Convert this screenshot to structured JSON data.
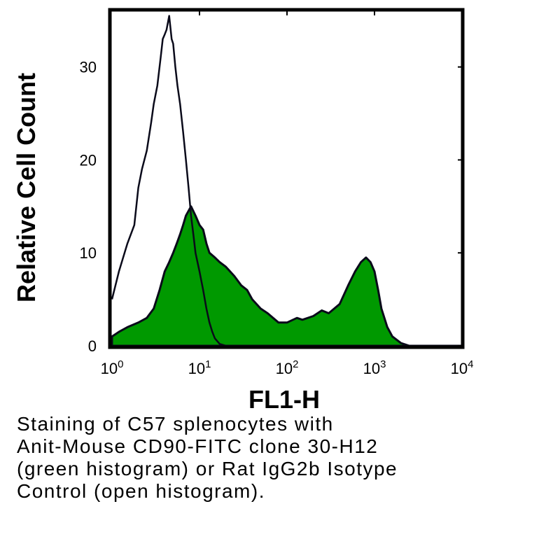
{
  "chart_data": {
    "type": "area",
    "xlabel": "FL1-H",
    "ylabel": "Relative Cell Count",
    "x_scale": "log",
    "xlim": [
      1,
      10000
    ],
    "ylim": [
      0,
      36
    ],
    "y_ticks": [
      "0",
      "10",
      "20",
      "30"
    ],
    "x_ticks": [
      {
        "base": "10",
        "exp": "0"
      },
      {
        "base": "10",
        "exp": "1"
      },
      {
        "base": "10",
        "exp": "2"
      },
      {
        "base": "10",
        "exp": "3"
      },
      {
        "base": "10",
        "exp": "4"
      }
    ],
    "grid": false,
    "series": [
      {
        "fill": "#009900",
        "x": [
          1,
          1.2,
          1.5,
          2,
          2.5,
          3,
          3.5,
          4,
          4.5,
          5,
          5.5,
          6,
          6.5,
          7,
          8,
          9,
          10,
          11,
          12,
          13,
          15,
          17,
          20,
          25,
          30,
          35,
          40,
          50,
          60,
          80,
          100,
          130,
          150,
          200,
          250,
          300,
          400,
          500,
          600,
          700,
          800,
          900,
          1000,
          1100,
          1200,
          1400,
          1600,
          2000,
          2500,
          10000
        ],
        "values": [
          1,
          1.5,
          2,
          2.5,
          3,
          4,
          6,
          8,
          9,
          10,
          11,
          12,
          13,
          14,
          15,
          14,
          13,
          12.5,
          11,
          10,
          9.5,
          9,
          8.5,
          7.5,
          6.5,
          6,
          5,
          4,
          3.5,
          2.5,
          2.5,
          3,
          2.8,
          3.2,
          3.8,
          3.5,
          4.5,
          6.5,
          8,
          9,
          9.5,
          9,
          8,
          6,
          4,
          2,
          1,
          0.3,
          0,
          0
        ]
      },
      {
        "fill": "none",
        "x": [
          1,
          1.2,
          1.5,
          1.8,
          2,
          2.2,
          2.5,
          2.8,
          3,
          3.3,
          3.6,
          3.8,
          4,
          4.2,
          4.5,
          4.8,
          5,
          5.3,
          5.6,
          6,
          6.5,
          7,
          7.5,
          8,
          8.5,
          9,
          10,
          11,
          12,
          13,
          14,
          15,
          17,
          20,
          25,
          30,
          10000
        ],
        "values": [
          5,
          8,
          11,
          13,
          17,
          19,
          21,
          24,
          26,
          28,
          31,
          33,
          33.5,
          34,
          35.5,
          33,
          32.5,
          30,
          28,
          26,
          23,
          20,
          17,
          14,
          12,
          10,
          8,
          6,
          4,
          2.5,
          1.5,
          0.8,
          0.2,
          0,
          0,
          0,
          0
        ]
      }
    ]
  },
  "caption": [
    "Staining of C57 splenocytes with",
    "Anit-Mouse CD90-FITC clone 30-H12",
    "(green histogram) or Rat IgG2b Isotype",
    "Control (open histogram)."
  ]
}
